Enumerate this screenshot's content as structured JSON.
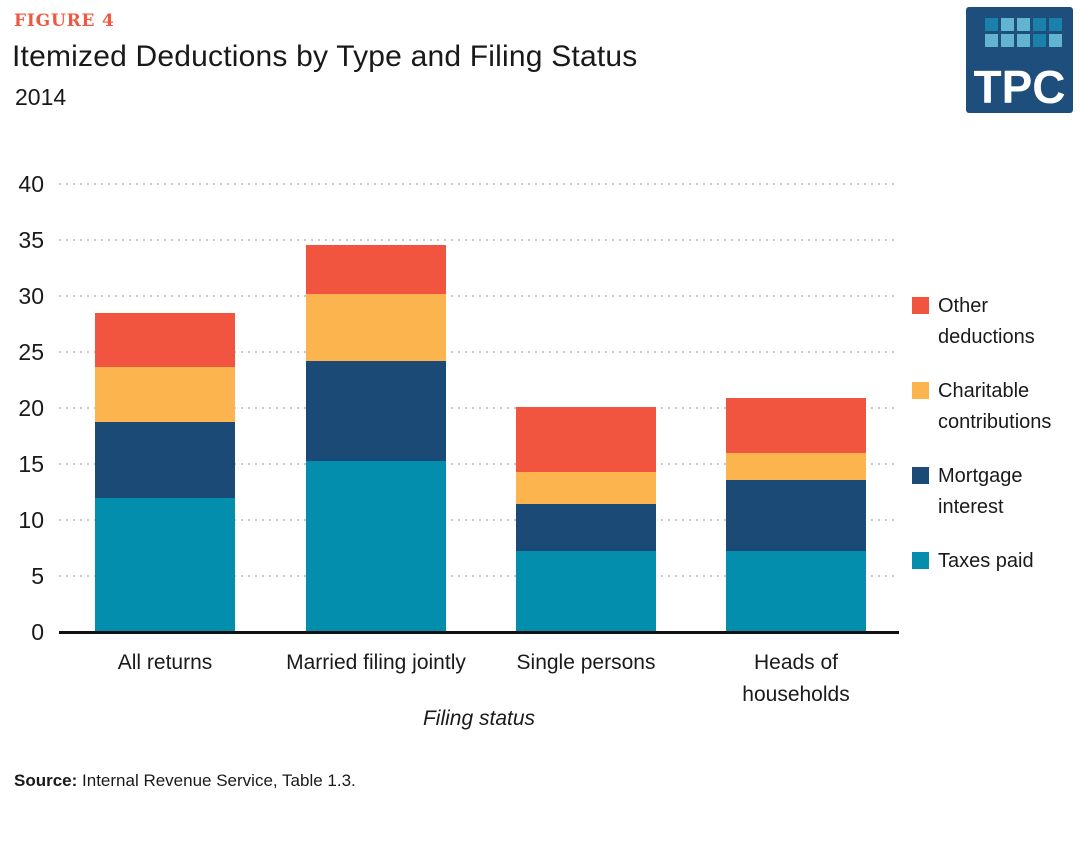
{
  "header": {
    "figure_label": "FIGURE 4",
    "title": "Itemized Deductions by Type and Filing Status",
    "subtitle": "2014"
  },
  "logo": {
    "text": "TPC",
    "bg_color": "#1d4e7c",
    "square_light": "#63b4d0",
    "square_dark": "#1a81aa",
    "grid_pattern": [
      [
        "dark",
        "light",
        "light",
        "dark",
        "dark"
      ],
      [
        "light",
        "light",
        "light",
        "dark",
        "light"
      ]
    ]
  },
  "chart_data": {
    "type": "bar",
    "stacked": true,
    "title": "Itemized Deductions by Type and Filing Status",
    "subtitle": "2014",
    "categories": [
      "All returns",
      "Married filing jointly",
      "Single persons",
      "Heads of households"
    ],
    "category_label_lines": [
      [
        "All returns"
      ],
      [
        "Married filing jointly"
      ],
      [
        "Single persons"
      ],
      [
        "Heads of",
        "households"
      ]
    ],
    "series": [
      {
        "name": "Taxes paid",
        "color": "#048eae",
        "values": [
          11.9,
          15.2,
          7.1,
          7.1
        ]
      },
      {
        "name": "Mortgage interest",
        "color": "#1b4a76",
        "values": [
          6.8,
          8.9,
          4.2,
          6.4
        ]
      },
      {
        "name": "Charitable contributions",
        "color": "#fbb44e",
        "values": [
          4.9,
          6.0,
          2.9,
          2.4
        ]
      },
      {
        "name": "Other deductions",
        "color": "#f15540",
        "values": [
          4.8,
          4.4,
          5.8,
          4.9
        ]
      }
    ],
    "totals": [
      28.4,
      34.5,
      20.0,
      20.8
    ],
    "xlabel": "Filing status",
    "ylabel": "",
    "ylim": [
      0,
      40
    ],
    "yticks": [
      0,
      5,
      10,
      15,
      20,
      25,
      30,
      35,
      40
    ],
    "grid": "dotted horizontal gridlines, no vertical grid",
    "legend_position": "right",
    "legend_order": [
      "Other deductions",
      "Charitable contributions",
      "Mortgage interest",
      "Taxes paid"
    ]
  },
  "source": {
    "label": "Source:",
    "text": " Internal Revenue Service, Table 1.3."
  }
}
